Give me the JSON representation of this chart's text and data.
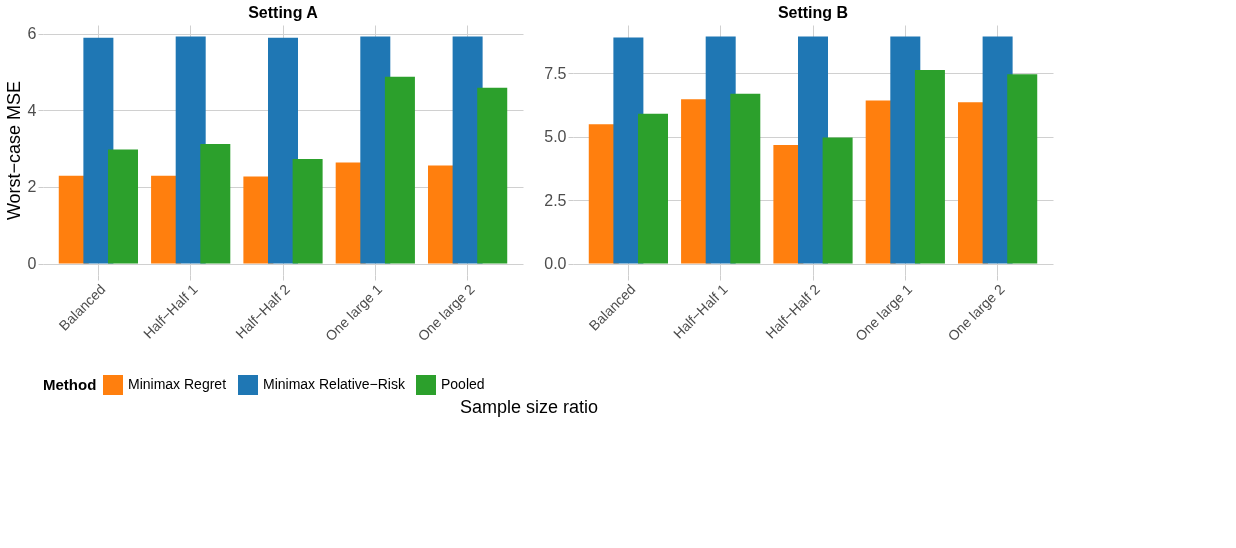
{
  "chart_data": [
    {
      "type": "bar",
      "title": "Setting A",
      "xlabel": "Sample size ratio",
      "ylabel": "Worst−case MSE",
      "legend_title": "Method",
      "legend": "bottom",
      "grid": true,
      "categories": [
        "Balanced",
        "Half−Half 1",
        "Half−Half 2",
        "One large 1",
        "One large 2"
      ],
      "ylim": [
        -0.3,
        6.23
      ],
      "yticks": [
        0,
        2,
        4,
        6
      ],
      "series": [
        {
          "name": "Minimax Regret",
          "color": "#ff7f0e",
          "values": [
            2.29,
            2.29,
            2.27,
            2.64,
            2.56
          ]
        },
        {
          "name": "Minimax Relative−Risk",
          "color": "#1f77b4",
          "values": [
            5.9,
            5.93,
            5.9,
            5.93,
            5.93
          ]
        },
        {
          "name": "Pooled",
          "color": "#2ca02c",
          "values": [
            2.98,
            3.12,
            2.73,
            4.88,
            4.59
          ]
        }
      ]
    },
    {
      "type": "bar",
      "title": "Setting B",
      "grid": true,
      "categories": [
        "Balanced",
        "Half−Half 1",
        "Half−Half 2",
        "One large 1",
        "One large 2"
      ],
      "ylim": [
        -0.45,
        9.4
      ],
      "yticks": [
        {
          "value": 0,
          "label": "0.0"
        },
        2.5,
        {
          "value": 5,
          "label": "5.0"
        },
        7.5
      ],
      "series": [
        {
          "name": "Minimax Regret",
          "color": "#ff7f0e",
          "values": [
            5.49,
            6.47,
            4.67,
            6.43,
            6.36
          ]
        },
        {
          "name": "Minimax Relative−Risk",
          "color": "#1f77b4",
          "values": [
            8.91,
            8.95,
            8.95,
            8.95,
            8.95
          ]
        },
        {
          "name": "Pooled",
          "color": "#2ca02c",
          "values": [
            5.9,
            6.69,
            4.97,
            7.63,
            7.46
          ]
        }
      ]
    }
  ]
}
